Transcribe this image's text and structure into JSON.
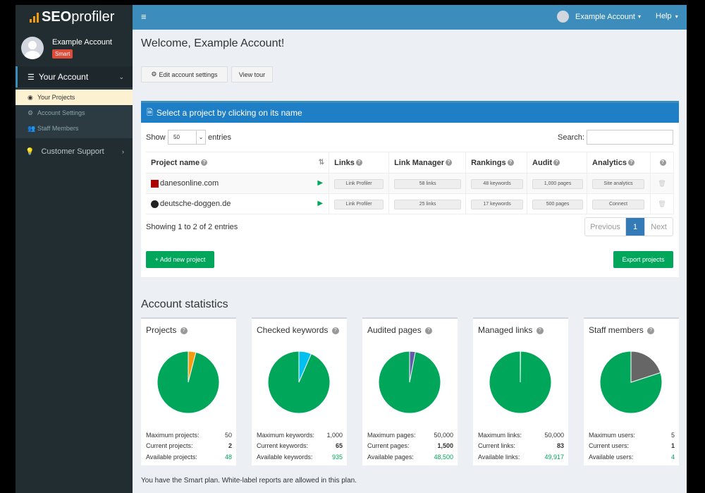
{
  "brand": {
    "logo_bold": "SEO",
    "logo_rest": "profiler"
  },
  "user": {
    "name": "Example Account",
    "plan_badge": "Smart"
  },
  "sidebar": {
    "your_account": "Your Account",
    "items": [
      {
        "label": "Your Projects",
        "icon": "dashboard-icon"
      },
      {
        "label": "Account Settings",
        "icon": "gears-icon"
      },
      {
        "label": "Staff Members",
        "icon": "users-icon"
      }
    ],
    "customer_support": "Customer Support"
  },
  "topbar": {
    "account": "Example Account",
    "help": "Help"
  },
  "main": {
    "welcome": "Welcome, Example Account!",
    "edit_settings": "Edit account settings",
    "view_tour": "View tour",
    "projects_header": "Select a project by clicking on its name",
    "show": "Show",
    "entries_value": "50",
    "entries": "entries",
    "search": "Search:",
    "columns": [
      "Project name",
      "Links",
      "Link Manager",
      "Rankings",
      "Audit",
      "Analytics"
    ],
    "rows": [
      {
        "name": "danesonline.com",
        "links": "Link Profiler",
        "link_manager": "58 links",
        "rankings": "48 keywords",
        "audit": "1,000 pages",
        "analytics": "Site analytics"
      },
      {
        "name": "deutsche-doggen.de",
        "links": "Link Profiler",
        "link_manager": "25 links",
        "rankings": "17 keywords",
        "audit": "500 pages",
        "analytics": "Connect"
      }
    ],
    "showing": "Showing 1 to 2 of 2 entries",
    "previous": "Previous",
    "page": "1",
    "next": "Next",
    "add_project": "+ Add new project",
    "export": "Export projects"
  },
  "stats": {
    "title": "Account statistics",
    "boxes": [
      {
        "title": "Projects",
        "rows": [
          [
            "Maximum projects:",
            "50"
          ],
          [
            "Current projects:",
            "2"
          ],
          [
            "Available projects:",
            "48"
          ]
        ],
        "used_color": "#f39c12",
        "max": 50,
        "used": 2
      },
      {
        "title": "Checked keywords",
        "rows": [
          [
            "Maximum keywords:",
            "1,000"
          ],
          [
            "Current keywords:",
            "65"
          ],
          [
            "Available keywords:",
            "935"
          ]
        ],
        "used_color": "#00c0ef",
        "max": 1000,
        "used": 65
      },
      {
        "title": "Audited pages",
        "rows": [
          [
            "Maximum pages:",
            "50,000"
          ],
          [
            "Current pages:",
            "1,500"
          ],
          [
            "Available pages:",
            "48,500"
          ]
        ],
        "used_color": "#605ca8",
        "max": 50000,
        "used": 1500
      },
      {
        "title": "Managed links",
        "rows": [
          [
            "Maximum links:",
            "50,000"
          ],
          [
            "Current links:",
            "83"
          ],
          [
            "Available links:",
            "49,917"
          ]
        ],
        "used_color": "#3c8dbc",
        "max": 50000,
        "used": 83
      },
      {
        "title": "Staff members",
        "rows": [
          [
            "Maximum users:",
            "5"
          ],
          [
            "Current users:",
            "1"
          ],
          [
            "Available users:",
            "4"
          ]
        ],
        "used_color": "#666666",
        "max": 5,
        "used": 1
      }
    ],
    "available_color": "#00a65a",
    "plan_note": "You have the Smart plan. White-label reports are allowed in this plan."
  }
}
